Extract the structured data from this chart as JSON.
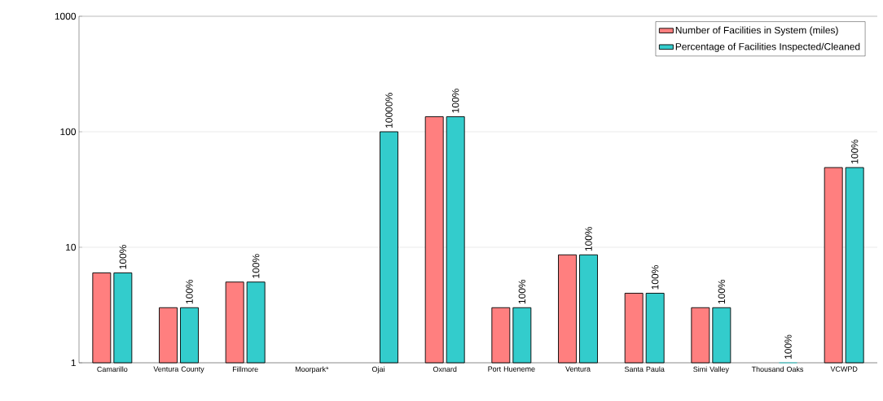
{
  "chart_data": {
    "type": "bar",
    "categories": [
      "Camarillo",
      "Ventura County",
      "Fillmore",
      "Moorpark*",
      "Ojai",
      "Oxnard",
      "Port Hueneme",
      "Ventura",
      "Santa Paula",
      "Simi Valley",
      "Thousand Oaks",
      "VCWPD"
    ],
    "series": [
      {
        "name": "Number of Facilities in System (miles)",
        "color": "#ff7f7f",
        "values": [
          6,
          3,
          5,
          null,
          null,
          135,
          3,
          8.6,
          4,
          3,
          null,
          49
        ]
      },
      {
        "name": "Percentage of Facilities Inspected/Cleaned",
        "color": "#33cccc",
        "values": [
          6,
          3,
          5,
          null,
          100,
          135,
          3,
          8.6,
          4,
          3,
          1,
          49
        ]
      }
    ],
    "annotations": [
      {
        "text": "100%",
        "x": "Camarillo",
        "y": 6
      },
      {
        "text": "100%",
        "x": "Ventura County",
        "y": 3
      },
      {
        "text": "100%",
        "x": "Fillmore",
        "y": 5
      },
      {
        "text": "10000%",
        "x": "Ojai",
        "y": 100
      },
      {
        "text": "100%",
        "x": "Oxnard",
        "y": 135
      },
      {
        "text": "100%",
        "x": "Port Hueneme",
        "y": 3
      },
      {
        "text": "100%",
        "x": "Ventura",
        "y": 8.6
      },
      {
        "text": "100%",
        "x": "Santa Paula",
        "y": 4
      },
      {
        "text": "100%",
        "x": "Simi Valley",
        "y": 3
      },
      {
        "text": "100%",
        "x": "Thousand Oaks",
        "y": 1
      },
      {
        "text": "100%",
        "x": "VCWPD",
        "y": 49
      }
    ],
    "ylim": [
      1,
      1000
    ],
    "yticks": [
      1,
      10,
      100,
      1000
    ],
    "log": true,
    "grid": "y",
    "legend": "top right"
  }
}
